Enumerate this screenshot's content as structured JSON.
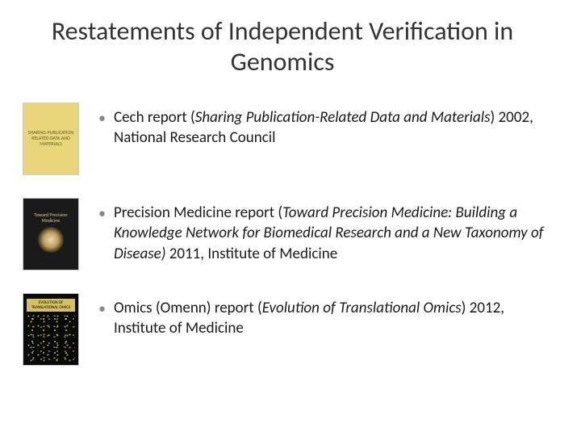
{
  "title": "Restatements of Independent Verification in Genomics",
  "items": [
    {
      "prefix": "Cech report (",
      "italic": "Sharing Publication-Related Data and Materials",
      "suffix": ") 2002, National Research Council",
      "thumb_label": "SHARING PUBLICATION RELATED DATA AND MATERIALS"
    },
    {
      "prefix": "Precision Medicine report (",
      "italic": "Toward Precision Medicine: Building a Knowledge Network for Biomedical Research and a New Taxonomy of Disease)",
      "suffix": " 2011, Institute of Medicine",
      "thumb_label": "Toward Precision Medicine"
    },
    {
      "prefix": "Omics (Omenn) report (",
      "italic": "Evolution of Translational Omics",
      "suffix": ") 2012, Institute of Medicine",
      "thumb_label": "EVOLUTION OF TRANSLATIONAL OMICS"
    }
  ],
  "colors": {
    "bullet": "#888888",
    "text": "#1a1a1a",
    "title": "#333333"
  }
}
